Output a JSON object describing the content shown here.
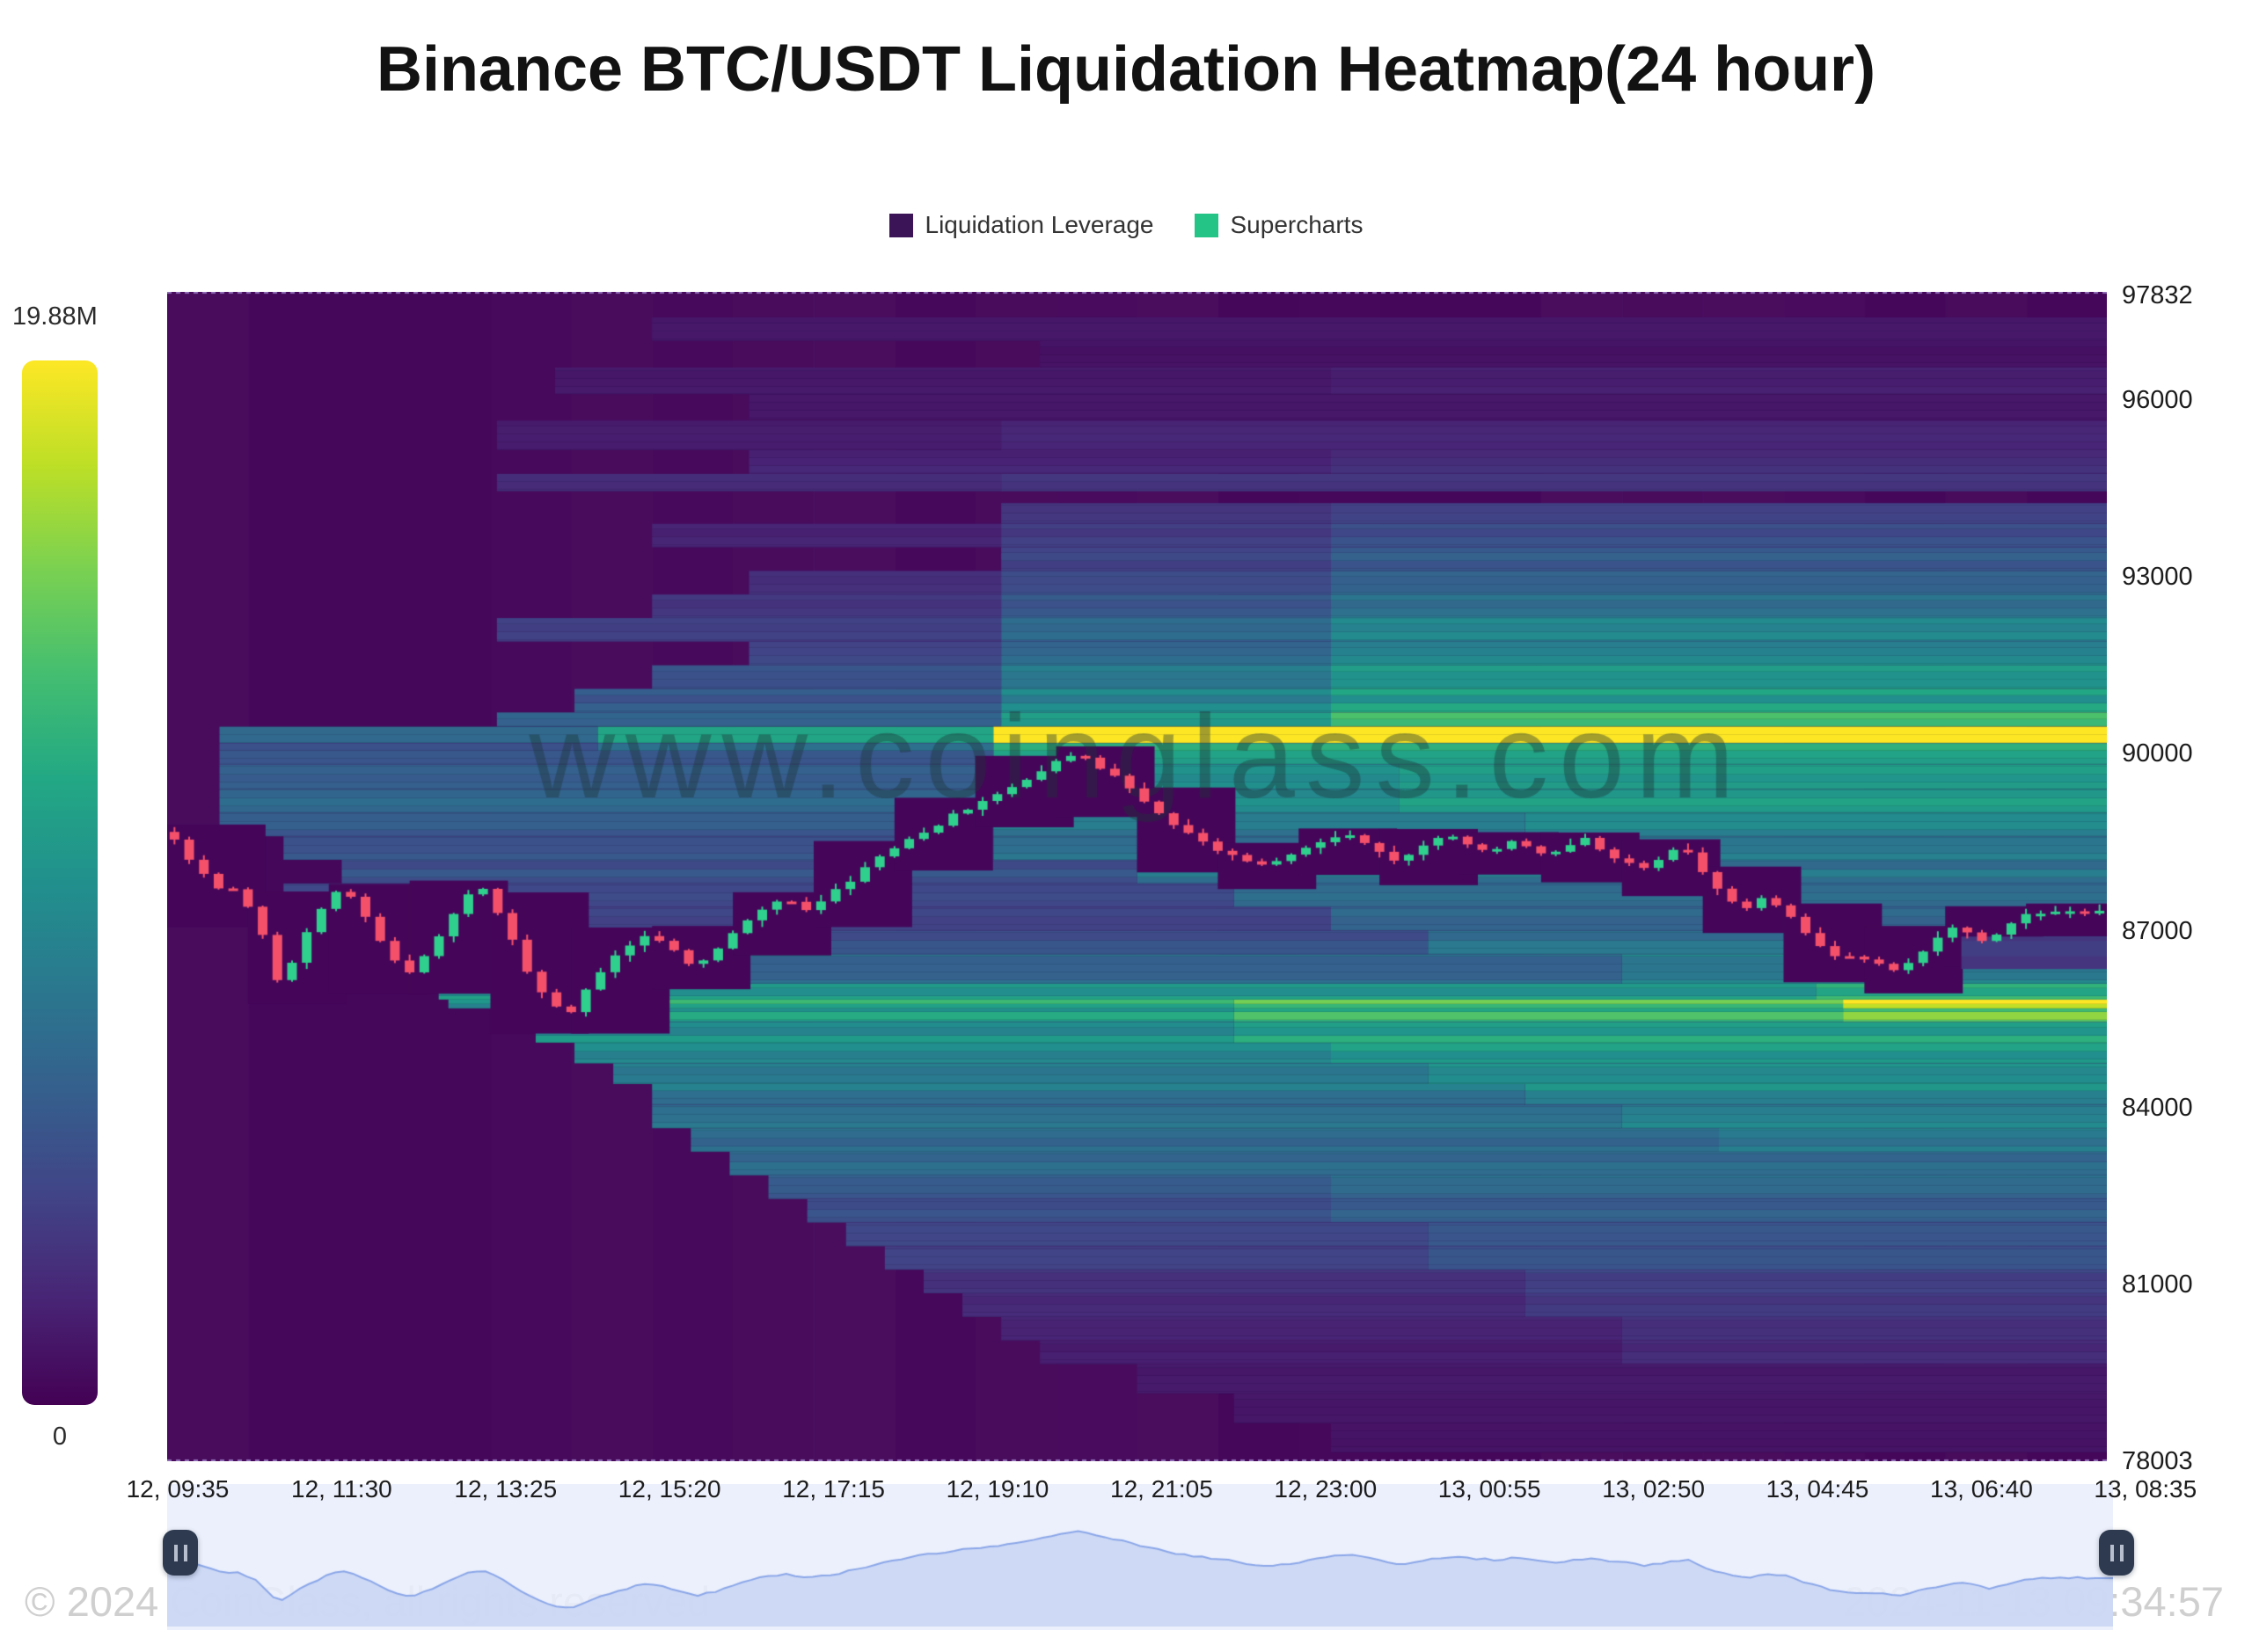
{
  "title": "Binance BTC/USDT Liquidation Heatmap(24 hour)",
  "legend": {
    "items": [
      {
        "label": "Liquidation Leverage",
        "color": "#3b1457"
      },
      {
        "label": "Supercharts",
        "color": "#24c486"
      }
    ]
  },
  "colorbar": {
    "max_label": "19.88M",
    "min_label": "0"
  },
  "footer": {
    "copyright": "© 2024 CoinGlass, all rights reserved",
    "timestamp": "2024-11-13 09:34:57"
  },
  "watermark": "www.coinglass.com",
  "colors": {
    "candle_up": "#2fd08d",
    "candle_down": "#f4506a",
    "nav_line": "#8aa6e8",
    "nav_fill": "rgba(200,213,243,0.85)",
    "nav_bg": "#e9eefc",
    "handle": "#2e3a4f",
    "axis_dash": "rgba(158,128,200,0.85)"
  },
  "chart_data": {
    "type": "heatmap",
    "title": "Binance BTC/USDT Liquidation Heatmap(24 hour)",
    "legend_position": "top",
    "grid": false,
    "y_axis": {
      "min": 78003,
      "max": 97832,
      "ticks": [
        97832,
        96000,
        93000,
        90000,
        87000,
        84000,
        81000,
        78003
      ]
    },
    "x_axis": {
      "ticks": [
        "12, 09:35",
        "12, 11:30",
        "12, 13:25",
        "12, 15:20",
        "12, 17:15",
        "12, 19:10",
        "12, 21:05",
        "12, 23:00",
        "13, 00:55",
        "13, 02:50",
        "13, 04:45",
        "13, 06:40",
        "13, 08:35"
      ]
    },
    "colorbar": {
      "max_value_label": "19.88M",
      "min_value_label": "0"
    },
    "liquidation_bands": [
      [
        97000,
        97400,
        [
          [
            0.25,
            0.06
          ]
        ]
      ],
      [
        96550,
        97000,
        [
          [
            0.45,
            0.05
          ]
        ]
      ],
      [
        96100,
        96550,
        [
          [
            0.2,
            0.07
          ],
          [
            0.6,
            0.09
          ]
        ]
      ],
      [
        95650,
        96100,
        [
          [
            0.3,
            0.06
          ]
        ]
      ],
      [
        95150,
        95650,
        [
          [
            0.17,
            0.08
          ],
          [
            0.43,
            0.11
          ]
        ]
      ],
      [
        94750,
        95150,
        [
          [
            0.3,
            0.1
          ],
          [
            0.6,
            0.13
          ]
        ]
      ],
      [
        94450,
        94750,
        [
          [
            0.17,
            0.12
          ],
          [
            0.43,
            0.15
          ]
        ]
      ],
      [
        93900,
        94250,
        [
          [
            0.43,
            0.16
          ],
          [
            0.6,
            0.2
          ]
        ]
      ],
      [
        93500,
        93900,
        [
          [
            0.25,
            0.1
          ],
          [
            0.43,
            0.18
          ],
          [
            0.6,
            0.24
          ]
        ]
      ],
      [
        93100,
        93500,
        [
          [
            0.43,
            0.2
          ],
          [
            0.6,
            0.28
          ]
        ]
      ],
      [
        92700,
        93100,
        [
          [
            0.3,
            0.14
          ],
          [
            0.43,
            0.24
          ],
          [
            0.6,
            0.33
          ]
        ]
      ],
      [
        92300,
        92700,
        [
          [
            0.25,
            0.16
          ],
          [
            0.43,
            0.28
          ],
          [
            0.6,
            0.38
          ]
        ]
      ],
      [
        91900,
        92300,
        [
          [
            0.17,
            0.18
          ],
          [
            0.43,
            0.33
          ],
          [
            0.6,
            0.44
          ]
        ]
      ],
      [
        91500,
        91900,
        [
          [
            0.3,
            0.22
          ],
          [
            0.43,
            0.36
          ],
          [
            0.6,
            0.48
          ]
        ]
      ],
      [
        91100,
        91500,
        [
          [
            0.25,
            0.25
          ],
          [
            0.43,
            0.4
          ],
          [
            0.6,
            0.52
          ]
        ]
      ],
      [
        90700,
        91100,
        [
          [
            0.21,
            0.28
          ],
          [
            0.43,
            0.46
          ],
          [
            0.6,
            0.56
          ]
        ]
      ],
      [
        90460,
        90700,
        [
          [
            0.17,
            0.3
          ],
          [
            0.43,
            0.52
          ],
          [
            0.6,
            0.66
          ]
        ]
      ],
      [
        90180,
        90460,
        [
          [
            0.027,
            0.32
          ],
          [
            0.222,
            0.55
          ],
          [
            0.426,
            0.97
          ]
        ]
      ],
      [
        90050,
        90180,
        [
          [
            0.027,
            0.28
          ],
          [
            0.222,
            0.42
          ],
          [
            0.426,
            0.72
          ]
        ]
      ],
      [
        89820,
        90050,
        [
          [
            0.027,
            0.26
          ],
          [
            0.426,
            0.55
          ]
        ]
      ],
      [
        89400,
        89820,
        [
          [
            0.027,
            0.3
          ],
          [
            0.426,
            0.5
          ],
          [
            0.635,
            0.55
          ]
        ]
      ],
      [
        89000,
        89400,
        [
          [
            0.027,
            0.32
          ],
          [
            0.426,
            0.46
          ],
          [
            0.635,
            0.52
          ]
        ]
      ],
      [
        88600,
        89000,
        [
          [
            0.027,
            0.3
          ],
          [
            0.426,
            0.42
          ],
          [
            0.7,
            0.48
          ]
        ]
      ],
      [
        88200,
        88600,
        [
          [
            0.06,
            0.28
          ],
          [
            0.426,
            0.4
          ],
          [
            0.75,
            0.44
          ]
        ]
      ],
      [
        87800,
        88200,
        [
          [
            0.09,
            0.25
          ],
          [
            0.5,
            0.38
          ]
        ]
      ],
      [
        87400,
        87800,
        [
          [
            0.06,
            0.22
          ],
          [
            0.55,
            0.35
          ]
        ]
      ],
      [
        87000,
        87400,
        [
          [
            0.09,
            0.2
          ],
          [
            0.6,
            0.33
          ]
        ]
      ],
      [
        86600,
        87000,
        [
          [
            0.125,
            0.25
          ],
          [
            0.65,
            0.38
          ]
        ]
      ],
      [
        86100,
        86600,
        [
          [
            0.14,
            0.35
          ],
          [
            0.75,
            0.45
          ]
        ]
      ],
      [
        85830,
        86100,
        [
          [
            0.14,
            0.52
          ],
          [
            0.85,
            0.62
          ]
        ]
      ],
      [
        85680,
        85830,
        [
          [
            0.145,
            0.48
          ],
          [
            0.23,
            0.62
          ],
          [
            0.55,
            0.72
          ],
          [
            0.864,
            0.985
          ]
        ]
      ],
      [
        85450,
        85680,
        [
          [
            0.17,
            0.55
          ],
          [
            0.55,
            0.65
          ],
          [
            0.864,
            0.75
          ]
        ]
      ],
      [
        85100,
        85450,
        [
          [
            0.19,
            0.5
          ],
          [
            0.55,
            0.58
          ]
        ]
      ],
      [
        84750,
        85100,
        [
          [
            0.21,
            0.45
          ],
          [
            0.6,
            0.52
          ]
        ]
      ],
      [
        84400,
        84750,
        [
          [
            0.23,
            0.42
          ],
          [
            0.65,
            0.5
          ]
        ]
      ],
      [
        84050,
        84400,
        [
          [
            0.25,
            0.4
          ],
          [
            0.7,
            0.48
          ]
        ]
      ],
      [
        83650,
        84050,
        [
          [
            0.25,
            0.38
          ],
          [
            0.75,
            0.45
          ]
        ]
      ],
      [
        83250,
        83650,
        [
          [
            0.27,
            0.36
          ],
          [
            0.8,
            0.42
          ]
        ]
      ],
      [
        82850,
        83250,
        [
          [
            0.29,
            0.34
          ]
        ]
      ],
      [
        82450,
        82850,
        [
          [
            0.31,
            0.3
          ],
          [
            0.6,
            0.36
          ]
        ]
      ],
      [
        82050,
        82450,
        [
          [
            0.33,
            0.26
          ],
          [
            0.6,
            0.32
          ]
        ]
      ],
      [
        81650,
        82050,
        [
          [
            0.35,
            0.22
          ],
          [
            0.65,
            0.28
          ]
        ]
      ],
      [
        81250,
        81650,
        [
          [
            0.37,
            0.18
          ],
          [
            0.65,
            0.24
          ]
        ]
      ],
      [
        80850,
        81250,
        [
          [
            0.39,
            0.15
          ],
          [
            0.7,
            0.2
          ]
        ]
      ],
      [
        80450,
        80850,
        [
          [
            0.41,
            0.12
          ],
          [
            0.7,
            0.17
          ]
        ]
      ],
      [
        80050,
        80450,
        [
          [
            0.43,
            0.1
          ],
          [
            0.75,
            0.14
          ]
        ]
      ],
      [
        79650,
        80050,
        [
          [
            0.45,
            0.08
          ],
          [
            0.75,
            0.12
          ]
        ]
      ],
      [
        79150,
        79650,
        [
          [
            0.5,
            0.07
          ]
        ]
      ],
      [
        78650,
        79150,
        [
          [
            0.55,
            0.06
          ]
        ]
      ],
      [
        78150,
        78650,
        [
          [
            0.6,
            0.05
          ]
        ]
      ]
    ],
    "rebuilt_bands": [
      [
        0.925,
        1.0,
        86350,
        86900,
        0.17
      ]
    ],
    "cleared_margin": {
      "above": 120,
      "below": 380,
      "buckets": 24
    },
    "price_path": [
      [
        0.0,
        88680
      ],
      [
        0.006,
        88430
      ],
      [
        0.012,
        88200
      ],
      [
        0.018,
        88020
      ],
      [
        0.024,
        87830
      ],
      [
        0.03,
        87600
      ],
      [
        0.036,
        87730
      ],
      [
        0.042,
        87420
      ],
      [
        0.048,
        87100
      ],
      [
        0.053,
        86400
      ],
      [
        0.058,
        86080
      ],
      [
        0.064,
        86420
      ],
      [
        0.07,
        86850
      ],
      [
        0.077,
        87200
      ],
      [
        0.084,
        87580
      ],
      [
        0.092,
        87700
      ],
      [
        0.1,
        87330
      ],
      [
        0.108,
        86930
      ],
      [
        0.116,
        86550
      ],
      [
        0.124,
        86280
      ],
      [
        0.132,
        86520
      ],
      [
        0.14,
        86900
      ],
      [
        0.148,
        87330
      ],
      [
        0.156,
        87620
      ],
      [
        0.163,
        87740
      ],
      [
        0.171,
        87280
      ],
      [
        0.179,
        86750
      ],
      [
        0.187,
        86250
      ],
      [
        0.194,
        85900
      ],
      [
        0.201,
        85680
      ],
      [
        0.208,
        85620
      ],
      [
        0.216,
        85980
      ],
      [
        0.224,
        86300
      ],
      [
        0.232,
        86580
      ],
      [
        0.24,
        86820
      ],
      [
        0.248,
        86960
      ],
      [
        0.256,
        86800
      ],
      [
        0.264,
        86600
      ],
      [
        0.272,
        86350
      ],
      [
        0.28,
        86550
      ],
      [
        0.288,
        86850
      ],
      [
        0.298,
        87150
      ],
      [
        0.308,
        87420
      ],
      [
        0.318,
        87560
      ],
      [
        0.328,
        87350
      ],
      [
        0.338,
        87520
      ],
      [
        0.35,
        87800
      ],
      [
        0.362,
        88120
      ],
      [
        0.374,
        88380
      ],
      [
        0.386,
        88620
      ],
      [
        0.398,
        88800
      ],
      [
        0.41,
        89050
      ],
      [
        0.422,
        89200
      ],
      [
        0.434,
        89400
      ],
      [
        0.446,
        89620
      ],
      [
        0.456,
        89800
      ],
      [
        0.464,
        89950
      ],
      [
        0.47,
        90020
      ],
      [
        0.478,
        89820
      ],
      [
        0.486,
        89650
      ],
      [
        0.494,
        89480
      ],
      [
        0.502,
        89250
      ],
      [
        0.51,
        89020
      ],
      [
        0.518,
        88800
      ],
      [
        0.528,
        88600
      ],
      [
        0.538,
        88420
      ],
      [
        0.55,
        88250
      ],
      [
        0.562,
        88080
      ],
      [
        0.574,
        88200
      ],
      [
        0.586,
        88400
      ],
      [
        0.598,
        88580
      ],
      [
        0.61,
        88620
      ],
      [
        0.622,
        88400
      ],
      [
        0.632,
        88150
      ],
      [
        0.642,
        88300
      ],
      [
        0.652,
        88550
      ],
      [
        0.662,
        88620
      ],
      [
        0.672,
        88470
      ],
      [
        0.682,
        88320
      ],
      [
        0.692,
        88520
      ],
      [
        0.702,
        88420
      ],
      [
        0.712,
        88280
      ],
      [
        0.722,
        88470
      ],
      [
        0.732,
        88560
      ],
      [
        0.742,
        88320
      ],
      [
        0.752,
        88170
      ],
      [
        0.762,
        88020
      ],
      [
        0.772,
        88300
      ],
      [
        0.782,
        88440
      ],
      [
        0.792,
        87950
      ],
      [
        0.802,
        87600
      ],
      [
        0.812,
        87330
      ],
      [
        0.822,
        87560
      ],
      [
        0.832,
        87380
      ],
      [
        0.842,
        87080
      ],
      [
        0.852,
        86750
      ],
      [
        0.862,
        86480
      ],
      [
        0.872,
        86580
      ],
      [
        0.882,
        86420
      ],
      [
        0.89,
        86300
      ],
      [
        0.898,
        86460
      ],
      [
        0.906,
        86700
      ],
      [
        0.914,
        86900
      ],
      [
        0.922,
        87080
      ],
      [
        0.93,
        86950
      ],
      [
        0.938,
        86760
      ],
      [
        0.946,
        87020
      ],
      [
        0.954,
        87240
      ],
      [
        0.962,
        87340
      ],
      [
        0.97,
        87290
      ],
      [
        0.978,
        87350
      ],
      [
        0.986,
        87280
      ],
      [
        0.994,
        87340
      ],
      [
        1.0,
        87320
      ]
    ],
    "candle_count": 132
  }
}
